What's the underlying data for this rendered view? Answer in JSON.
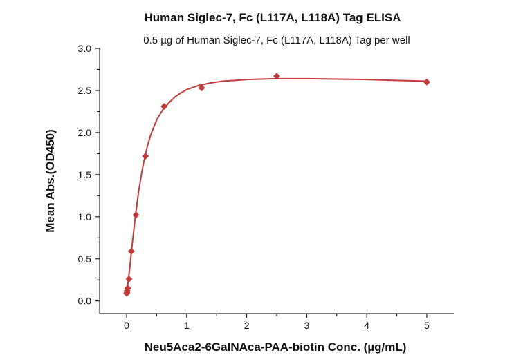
{
  "chart_data": {
    "type": "scatter",
    "title": "Human Siglec-7, Fc (L117A, L118A) Tag ELISA",
    "subtitle": "0.5 µg of Human Siglec-7, Fc (L117A, L118A) Tag per well",
    "xlabel": "Neu5Aca2-6GalNAca-PAA-biotin Conc. (µg/mL)",
    "ylabel": "Mean Abs.(OD450)",
    "xlim": [
      -0.45,
      5.45
    ],
    "ylim": [
      -0.15,
      3.0
    ],
    "xticks": [
      0,
      1,
      2,
      3,
      4,
      5
    ],
    "yticks": [
      0.0,
      0.5,
      1.0,
      1.5,
      2.0,
      2.5,
      3.0
    ],
    "xtick_labels": [
      "0",
      "1",
      "2",
      "3",
      "4",
      "5"
    ],
    "ytick_labels": [
      "0.0",
      "0.5",
      "1.0",
      "1.5",
      "2.0",
      "2.5",
      "3.0"
    ],
    "grid": false,
    "legend": "none",
    "series": [
      {
        "marker": "diamond",
        "color": "#c03a3a",
        "x": [
          0.002,
          0.005,
          0.01,
          0.02,
          0.039,
          0.078,
          0.156,
          0.313,
          0.625,
          1.25,
          2.5,
          5.0
        ],
        "y": [
          0.09,
          0.1,
          0.12,
          0.15,
          0.26,
          0.59,
          1.02,
          1.72,
          2.31,
          2.53,
          2.67,
          2.6
        ],
        "fit_curve": {
          "x": [
            0,
            0.05,
            0.1,
            0.15,
            0.2,
            0.25,
            0.3,
            0.35,
            0.4,
            0.5,
            0.6,
            0.7,
            0.8,
            0.9,
            1.0,
            1.2,
            1.4,
            1.6,
            1.8,
            2.0,
            2.5,
            3.0,
            3.5,
            4.0,
            4.5,
            5.0
          ],
          "y": [
            0.08,
            0.38,
            0.72,
            1.03,
            1.3,
            1.52,
            1.7,
            1.85,
            1.97,
            2.15,
            2.27,
            2.35,
            2.42,
            2.47,
            2.51,
            2.56,
            2.59,
            2.61,
            2.62,
            2.63,
            2.64,
            2.64,
            2.635,
            2.63,
            2.62,
            2.61
          ]
        }
      }
    ]
  }
}
